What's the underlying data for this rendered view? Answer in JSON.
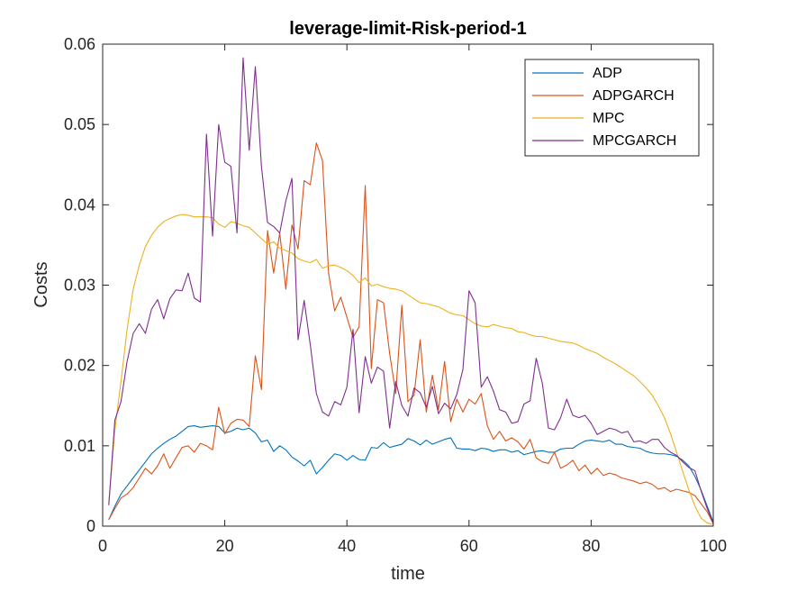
{
  "chart_data": {
    "type": "line",
    "title": "leverage-limit-Risk-period-1",
    "xlabel": "time",
    "ylabel": "Costs",
    "xlim": [
      0,
      100
    ],
    "ylim": [
      0,
      0.06
    ],
    "x_ticks": [
      0,
      20,
      40,
      60,
      80,
      100
    ],
    "x_tick_labels": [
      "0",
      "20",
      "40",
      "60",
      "80",
      "100"
    ],
    "y_ticks": [
      0,
      0.01,
      0.02,
      0.03,
      0.04,
      0.05,
      0.06
    ],
    "y_tick_labels": [
      "0",
      "0.01",
      "0.02",
      "0.03",
      "0.04",
      "0.05",
      "0.06"
    ],
    "grid": false,
    "legend_position": "top-right",
    "series": [
      {
        "name": "ADP",
        "color": "#0072BD",
        "x": [
          1,
          2,
          3,
          4,
          5,
          6,
          7,
          8,
          9,
          10,
          11,
          12,
          13,
          14,
          15,
          16,
          17,
          18,
          19,
          20,
          21,
          22,
          23,
          24,
          25,
          26,
          27,
          28,
          29,
          30,
          31,
          32,
          33,
          34,
          35,
          36,
          37,
          38,
          39,
          40,
          41,
          42,
          43,
          44,
          45,
          46,
          47,
          48,
          49,
          50,
          51,
          52,
          53,
          54,
          55,
          56,
          57,
          58,
          59,
          60,
          61,
          62,
          63,
          64,
          65,
          66,
          67,
          68,
          69,
          70,
          71,
          72,
          73,
          74,
          75,
          76,
          77,
          78,
          79,
          80,
          81,
          82,
          83,
          84,
          85,
          86,
          87,
          88,
          89,
          90,
          91,
          92,
          93,
          94,
          95,
          96,
          97,
          98,
          99,
          100
        ],
        "y": [
          0.0008,
          0.0025,
          0.004,
          0.005,
          0.006,
          0.007,
          0.008,
          0.009,
          0.0097,
          0.0103,
          0.0108,
          0.0112,
          0.0118,
          0.0124,
          0.0125,
          0.0123,
          0.0124,
          0.0125,
          0.0124,
          0.0116,
          0.0118,
          0.0122,
          0.012,
          0.0122,
          0.0116,
          0.0105,
          0.0107,
          0.0093,
          0.01,
          0.0095,
          0.0086,
          0.0081,
          0.0075,
          0.0082,
          0.0065,
          0.0073,
          0.0082,
          0.009,
          0.0088,
          0.0082,
          0.0088,
          0.0083,
          0.0082,
          0.0098,
          0.0097,
          0.0104,
          0.0098,
          0.01,
          0.0102,
          0.0109,
          0.0106,
          0.0101,
          0.0107,
          0.0102,
          0.0105,
          0.0108,
          0.011,
          0.0097,
          0.0096,
          0.0096,
          0.0094,
          0.0097,
          0.0096,
          0.0093,
          0.0095,
          0.0095,
          0.0092,
          0.0094,
          0.0089,
          0.0091,
          0.0093,
          0.0094,
          0.0092,
          0.0092,
          0.0096,
          0.0097,
          0.0097,
          0.0102,
          0.0106,
          0.0107,
          0.0106,
          0.0105,
          0.0107,
          0.0102,
          0.0102,
          0.0099,
          0.0098,
          0.0097,
          0.0093,
          0.0091,
          0.009,
          0.009,
          0.0089,
          0.0087,
          0.0082,
          0.0075,
          0.0062,
          0.0045,
          0.0025,
          0.0005
        ]
      },
      {
        "name": "ADPGARCH",
        "color": "#D95319",
        "x": [
          1,
          2,
          3,
          4,
          5,
          6,
          7,
          8,
          9,
          10,
          11,
          12,
          13,
          14,
          15,
          16,
          17,
          18,
          19,
          20,
          21,
          22,
          23,
          24,
          25,
          26,
          27,
          28,
          29,
          30,
          31,
          32,
          33,
          34,
          35,
          36,
          37,
          38,
          39,
          40,
          41,
          42,
          43,
          44,
          45,
          46,
          47,
          48,
          49,
          50,
          51,
          52,
          53,
          54,
          55,
          56,
          57,
          58,
          59,
          60,
          61,
          62,
          63,
          64,
          65,
          66,
          67,
          68,
          69,
          70,
          71,
          72,
          73,
          74,
          75,
          76,
          77,
          78,
          79,
          80,
          81,
          82,
          83,
          84,
          85,
          86,
          87,
          88,
          89,
          90,
          91,
          92,
          93,
          94,
          95,
          96,
          97,
          98,
          99,
          100
        ],
        "y": [
          0.0008,
          0.0022,
          0.0035,
          0.004,
          0.0048,
          0.006,
          0.0072,
          0.0065,
          0.0075,
          0.009,
          0.0072,
          0.0085,
          0.0098,
          0.01,
          0.0092,
          0.0103,
          0.01,
          0.0095,
          0.0148,
          0.0115,
          0.0128,
          0.0133,
          0.0132,
          0.0124,
          0.0212,
          0.017,
          0.0368,
          0.0315,
          0.0365,
          0.0295,
          0.0375,
          0.0345,
          0.043,
          0.0425,
          0.0477,
          0.0455,
          0.0315,
          0.0268,
          0.0285,
          0.026,
          0.0235,
          0.0248,
          0.0424,
          0.0196,
          0.0282,
          0.0278,
          0.0215,
          0.0165,
          0.0275,
          0.0155,
          0.0163,
          0.0232,
          0.0142,
          0.0188,
          0.0145,
          0.0205,
          0.013,
          0.0158,
          0.0142,
          0.0158,
          0.0152,
          0.0165,
          0.0125,
          0.0108,
          0.0118,
          0.0106,
          0.011,
          0.0105,
          0.0096,
          0.0108,
          0.0085,
          0.008,
          0.0078,
          0.0092,
          0.0072,
          0.0076,
          0.0082,
          0.0069,
          0.0076,
          0.0065,
          0.0072,
          0.0063,
          0.0066,
          0.0064,
          0.006,
          0.0058,
          0.0056,
          0.0053,
          0.0055,
          0.0052,
          0.0046,
          0.0048,
          0.0043,
          0.0046,
          0.0044,
          0.0042,
          0.0038,
          0.0028,
          0.0018,
          0.0003
        ]
      },
      {
        "name": "MPC",
        "color": "#EDB120",
        "x": [
          1,
          2,
          3,
          4,
          5,
          6,
          7,
          8,
          9,
          10,
          11,
          12,
          13,
          14,
          15,
          16,
          17,
          18,
          19,
          20,
          21,
          22,
          23,
          24,
          25,
          26,
          27,
          28,
          29,
          30,
          31,
          32,
          33,
          34,
          35,
          36,
          37,
          38,
          39,
          40,
          41,
          42,
          43,
          44,
          45,
          46,
          47,
          48,
          49,
          50,
          51,
          52,
          53,
          54,
          55,
          56,
          57,
          58,
          59,
          60,
          61,
          62,
          63,
          64,
          65,
          66,
          67,
          68,
          69,
          70,
          71,
          72,
          73,
          74,
          75,
          76,
          77,
          78,
          79,
          80,
          81,
          82,
          83,
          84,
          85,
          86,
          87,
          88,
          89,
          90,
          91,
          92,
          93,
          94,
          95,
          96,
          97,
          98,
          99,
          100
        ],
        "y": [
          0.0028,
          0.012,
          0.018,
          0.0245,
          0.0295,
          0.0325,
          0.0348,
          0.0362,
          0.0372,
          0.0379,
          0.0383,
          0.0386,
          0.0388,
          0.0387,
          0.0385,
          0.0385,
          0.0385,
          0.0384,
          0.0376,
          0.0372,
          0.0379,
          0.0377,
          0.0374,
          0.0372,
          0.0365,
          0.0358,
          0.0351,
          0.0354,
          0.0346,
          0.0343,
          0.034,
          0.0333,
          0.033,
          0.0328,
          0.0332,
          0.0321,
          0.0324,
          0.0325,
          0.0322,
          0.0318,
          0.0312,
          0.0303,
          0.0309,
          0.0299,
          0.0301,
          0.0298,
          0.0296,
          0.0295,
          0.0293,
          0.0288,
          0.0283,
          0.0278,
          0.0277,
          0.0275,
          0.0273,
          0.0269,
          0.0265,
          0.0263,
          0.0262,
          0.0257,
          0.0252,
          0.0249,
          0.0248,
          0.0251,
          0.0249,
          0.0247,
          0.0246,
          0.0242,
          0.0241,
          0.0238,
          0.0236,
          0.0236,
          0.0234,
          0.0232,
          0.023,
          0.0229,
          0.0228,
          0.0225,
          0.0221,
          0.0218,
          0.0215,
          0.021,
          0.0206,
          0.0202,
          0.0197,
          0.0192,
          0.0187,
          0.018,
          0.0172,
          0.0163,
          0.015,
          0.0135,
          0.0115,
          0.0092,
          0.0068,
          0.0045,
          0.0025,
          0.001,
          0.0004,
          0.0002
        ]
      },
      {
        "name": "MPCGARCH",
        "color": "#7E2F8E",
        "x": [
          1,
          2,
          3,
          4,
          5,
          6,
          7,
          8,
          9,
          10,
          11,
          12,
          13,
          14,
          15,
          16,
          17,
          18,
          19,
          20,
          21,
          22,
          23,
          24,
          25,
          26,
          27,
          28,
          29,
          30,
          31,
          32,
          33,
          34,
          35,
          36,
          37,
          38,
          39,
          40,
          41,
          42,
          43,
          44,
          45,
          46,
          47,
          48,
          49,
          50,
          51,
          52,
          53,
          54,
          55,
          56,
          57,
          58,
          59,
          60,
          61,
          62,
          63,
          64,
          65,
          66,
          67,
          68,
          69,
          70,
          71,
          72,
          73,
          74,
          75,
          76,
          77,
          78,
          79,
          80,
          81,
          82,
          83,
          84,
          85,
          86,
          87,
          88,
          89,
          90,
          91,
          92,
          93,
          94,
          95,
          96,
          97,
          98,
          99,
          100
        ],
        "y": [
          0.0026,
          0.0132,
          0.0155,
          0.0205,
          0.024,
          0.0252,
          0.024,
          0.027,
          0.0282,
          0.0258,
          0.0283,
          0.0294,
          0.0293,
          0.0315,
          0.0284,
          0.0279,
          0.0488,
          0.0361,
          0.05,
          0.0453,
          0.0448,
          0.0365,
          0.0583,
          0.0468,
          0.0572,
          0.0448,
          0.0378,
          0.0373,
          0.0365,
          0.0405,
          0.0433,
          0.0232,
          0.0281,
          0.0226,
          0.0165,
          0.0142,
          0.0137,
          0.0155,
          0.0151,
          0.0173,
          0.0245,
          0.0141,
          0.0211,
          0.0178,
          0.0198,
          0.0193,
          0.0122,
          0.018,
          0.015,
          0.0137,
          0.0172,
          0.0166,
          0.0148,
          0.0174,
          0.014,
          0.0153,
          0.0146,
          0.0164,
          0.0195,
          0.0293,
          0.0278,
          0.0173,
          0.0186,
          0.0168,
          0.0145,
          0.0142,
          0.0128,
          0.013,
          0.0152,
          0.0156,
          0.0209,
          0.0178,
          0.0122,
          0.012,
          0.0135,
          0.0158,
          0.0138,
          0.0135,
          0.0138,
          0.0128,
          0.0114,
          0.0118,
          0.0122,
          0.012,
          0.0116,
          0.0118,
          0.0105,
          0.0106,
          0.0103,
          0.0108,
          0.0108,
          0.0098,
          0.0092,
          0.0088,
          0.008,
          0.0073,
          0.0069,
          0.0044,
          0.0022,
          0.0004
        ]
      }
    ]
  }
}
